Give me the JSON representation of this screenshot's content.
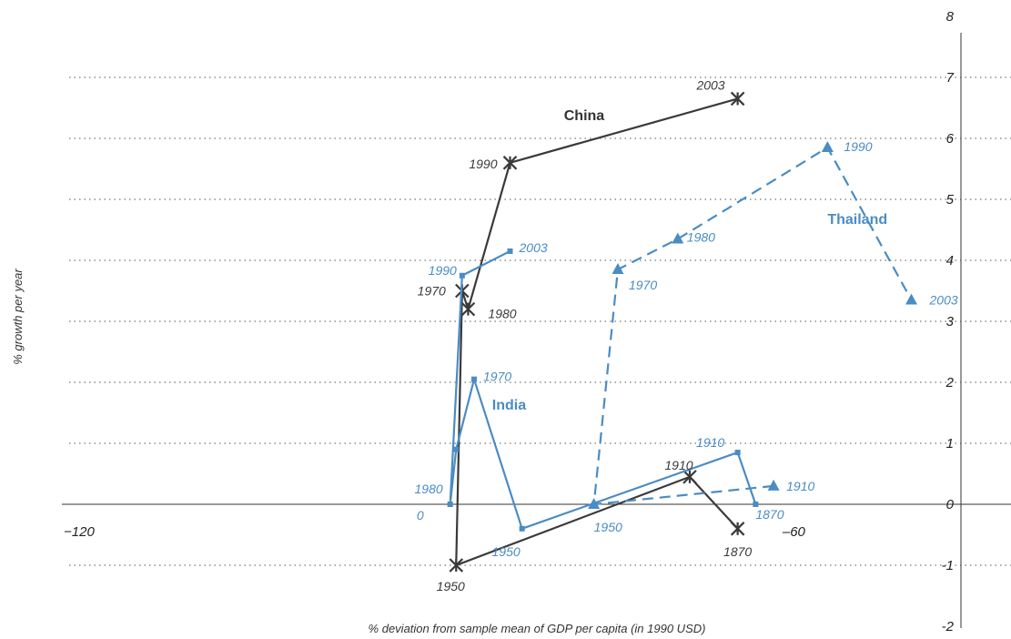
{
  "chart_data": {
    "type": "line",
    "xlabel": "% deviation from sample mean of GDP per capita (in 1990 USD)",
    "ylabel": "% growth per year",
    "xlim": [
      -120,
      -47
    ],
    "ylim": [
      -2,
      8
    ],
    "x_ticks": [
      {
        "value": -120,
        "label": "−120"
      },
      {
        "value": -60,
        "label": "–60"
      }
    ],
    "y_ticks": [
      {
        "value": 8,
        "label": "8"
      },
      {
        "value": 7,
        "label": "7"
      },
      {
        "value": 6,
        "label": "6"
      },
      {
        "value": 5,
        "label": "5"
      },
      {
        "value": 4,
        "label": "4"
      },
      {
        "value": 3,
        "label": "3"
      },
      {
        "value": 2,
        "label": "2"
      },
      {
        "value": 1,
        "label": "1"
      },
      {
        "value": 0,
        "label": "0"
      },
      {
        "value": -1,
        "label": "-1"
      },
      {
        "value": -2,
        "label": "-2"
      }
    ],
    "grid": "horizontal-dotted",
    "colors": {
      "china": "#3a3a3a",
      "india": "#4a8cc4",
      "thailand": "#4a8cc4"
    },
    "series": [
      {
        "name": "China",
        "style": "solid",
        "marker": "star",
        "points": [
          {
            "x": -64.5,
            "y": -0.4,
            "label": "1870"
          },
          {
            "x": -68.5,
            "y": 0.45,
            "label": "1910"
          },
          {
            "x": -88,
            "y": -1.0,
            "label": "1950"
          },
          {
            "x": -87.5,
            "y": 3.5,
            "label": "1970"
          },
          {
            "x": -87,
            "y": 3.2,
            "label": "1980"
          },
          {
            "x": -83.5,
            "y": 5.6,
            "label": "1990"
          },
          {
            "x": -64.5,
            "y": 6.65,
            "label": "2003"
          }
        ]
      },
      {
        "name": "India",
        "style": "solid",
        "marker": "square",
        "points": [
          {
            "x": -63,
            "y": 0.0,
            "label": "1870"
          },
          {
            "x": -64.5,
            "y": 0.85,
            "label": "1910"
          },
          {
            "x": -82.5,
            "y": -0.4,
            "label": "1950"
          },
          {
            "x": -86.5,
            "y": 2.05,
            "label": "1970"
          },
          {
            "x": -88,
            "y": 0.9,
            "label": null
          },
          {
            "x": -88.5,
            "y": 0.0,
            "label": "1980"
          },
          {
            "x": -87.5,
            "y": 3.75,
            "label": "1990"
          },
          {
            "x": -83.5,
            "y": 4.15,
            "label": "2003"
          }
        ]
      },
      {
        "name": "Thailand",
        "style": "dashed",
        "marker": "triangle",
        "points": [
          {
            "x": -61.5,
            "y": 0.3,
            "label": "1910"
          },
          {
            "x": -76.5,
            "y": 0.0,
            "label": "1950"
          },
          {
            "x": -74.5,
            "y": 3.85,
            "label": "1970"
          },
          {
            "x": -69.5,
            "y": 4.35,
            "label": "1980"
          },
          {
            "x": -57,
            "y": 5.85,
            "label": "1990"
          },
          {
            "x": -50,
            "y": 3.35,
            "label": "2003"
          }
        ]
      }
    ],
    "annotations": [
      {
        "text": "0",
        "x": -91,
        "y": -0.25
      }
    ]
  }
}
